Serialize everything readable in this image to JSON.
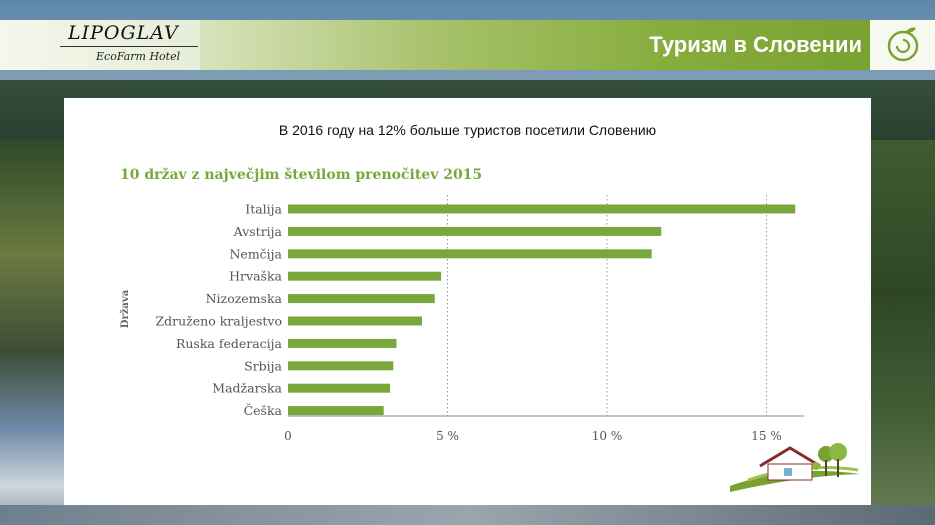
{
  "header": {
    "brand_name": "LIPOGLAV",
    "brand_sub": "EcoFarm Hotel",
    "page_title": "Туризм в Словении"
  },
  "main": {
    "headline": "В 2016 году на 12% больше туристов посетили Словению"
  },
  "colors": {
    "accent_green": "#77a83a",
    "bar_green": "#78a83b"
  },
  "icons": [
    "swirl-logo-icon",
    "eco-house-logo-icon"
  ],
  "chart_data": {
    "type": "bar",
    "orientation": "horizontal",
    "title": "10 držav z največjim številom prenočitev 2015",
    "ylabel": "Država",
    "xlabel": "",
    "categories": [
      "Italija",
      "Avstrija",
      "Nemčija",
      "Hrvaška",
      "Nizozemska",
      "Združeno kraljestvo",
      "Ruska federacija",
      "Srbija",
      "Madžarska",
      "Češka"
    ],
    "values": [
      15.9,
      11.7,
      11.4,
      4.8,
      4.6,
      4.2,
      3.4,
      3.3,
      3.2,
      3.0
    ],
    "xlim": [
      0,
      16
    ],
    "xticks": [
      0,
      5,
      10,
      15
    ],
    "xtick_labels": [
      "0",
      "5 %",
      "10 %",
      "15 %"
    ],
    "grid": "vertical dotted"
  }
}
